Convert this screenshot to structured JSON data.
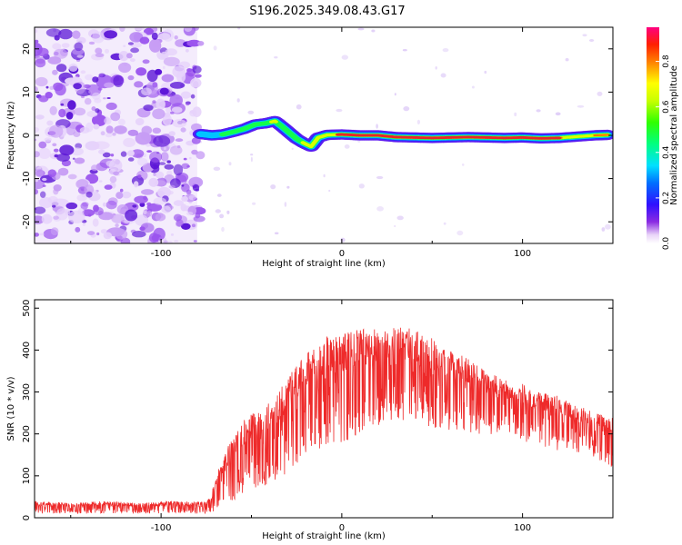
{
  "title": "S196.2025.349.08.43.G17",
  "colors": {
    "snr_line": "#ee2a2a",
    "axis": "#000000",
    "noise": "#6a1fe0",
    "trace_core": "#e8242a"
  },
  "chart_data": [
    {
      "type": "heatmap",
      "title": "S196.2025.349.08.43.G17",
      "xlabel": "Height of straight line (km)",
      "ylabel": "Frequency (Hz)",
      "xlim": [
        -170,
        150
      ],
      "ylim": [
        -25,
        25
      ],
      "xticks": [
        -100,
        0,
        100
      ],
      "xtick_labels": [
        "-100",
        "0",
        "100"
      ],
      "yticks": [
        -20,
        -10,
        0,
        10,
        20
      ],
      "ytick_labels": [
        "-20",
        "-10",
        "0",
        "10",
        "20"
      ],
      "colorbar": {
        "label": "Normalized spectral amplitude",
        "range": [
          0,
          0.95
        ],
        "ticks": [
          0.0,
          0.2,
          0.4,
          0.6,
          0.8
        ],
        "tick_labels": [
          "0.0",
          "0.2",
          "0.4",
          "0.6",
          "0.8"
        ]
      },
      "noise_region_km": [
        -170,
        -80
      ],
      "dominant_frequency_trace": {
        "x": [
          -78,
          -72,
          -66,
          -60,
          -54,
          -48,
          -42,
          -37,
          -33,
          -29,
          -25,
          -21,
          -17,
          -13,
          -8,
          0,
          10,
          20,
          30,
          40,
          50,
          60,
          70,
          80,
          90,
          100,
          110,
          120,
          130,
          140,
          147
        ],
        "y": [
          0.3,
          0.0,
          0.2,
          0.8,
          1.5,
          2.5,
          2.8,
          3.3,
          2.0,
          0.6,
          -0.8,
          -1.8,
          -2.6,
          -0.5,
          0.1,
          0.2,
          0.0,
          0.0,
          -0.4,
          -0.5,
          -0.6,
          -0.5,
          -0.4,
          -0.5,
          -0.6,
          -0.5,
          -0.7,
          -0.6,
          -0.3,
          0.0,
          0.1
        ],
        "amplitude": [
          0.35,
          0.4,
          0.5,
          0.5,
          0.55,
          0.6,
          0.65,
          0.7,
          0.6,
          0.55,
          0.6,
          0.7,
          0.75,
          0.7,
          0.75,
          0.9,
          0.9,
          0.9,
          0.92,
          0.92,
          0.9,
          0.9,
          0.88,
          0.9,
          0.88,
          0.9,
          0.88,
          0.86,
          0.8,
          0.85,
          0.85
        ]
      }
    },
    {
      "type": "line",
      "title": "",
      "xlabel": "Height of straight line (km)",
      "ylabel": "SNR (10 * v/v)",
      "xlim": [
        -170,
        150
      ],
      "ylim": [
        0,
        520
      ],
      "xticks": [
        -100,
        0,
        100
      ],
      "xtick_labels": [
        "-100",
        "0",
        "100"
      ],
      "yticks": [
        0,
        100,
        200,
        300,
        400,
        500
      ],
      "ytick_labels": [
        "0",
        "100",
        "200",
        "300",
        "400",
        "500"
      ],
      "series": [
        {
          "name": "SNR",
          "x": [
            -170,
            -150,
            -130,
            -110,
            -95,
            -80,
            -73,
            -68,
            -60,
            -52,
            -45,
            -35,
            -25,
            -15,
            -8,
            0,
            10,
            20,
            30,
            40,
            50,
            60,
            70,
            80,
            90,
            100,
            110,
            120,
            130,
            140,
            150
          ],
          "top": [
            40,
            35,
            40,
            35,
            40,
            38,
            45,
            120,
            200,
            250,
            250,
            300,
            370,
            410,
            440,
            440,
            450,
            450,
            460,
            450,
            430,
            400,
            380,
            350,
            330,
            320,
            300,
            290,
            270,
            250,
            240
          ],
          "bottom": [
            10,
            10,
            10,
            10,
            10,
            10,
            10,
            20,
            40,
            60,
            70,
            90,
            120,
            160,
            160,
            170,
            200,
            220,
            230,
            220,
            210,
            210,
            200,
            200,
            190,
            180,
            170,
            160,
            150,
            140,
            120
          ]
        }
      ]
    }
  ]
}
